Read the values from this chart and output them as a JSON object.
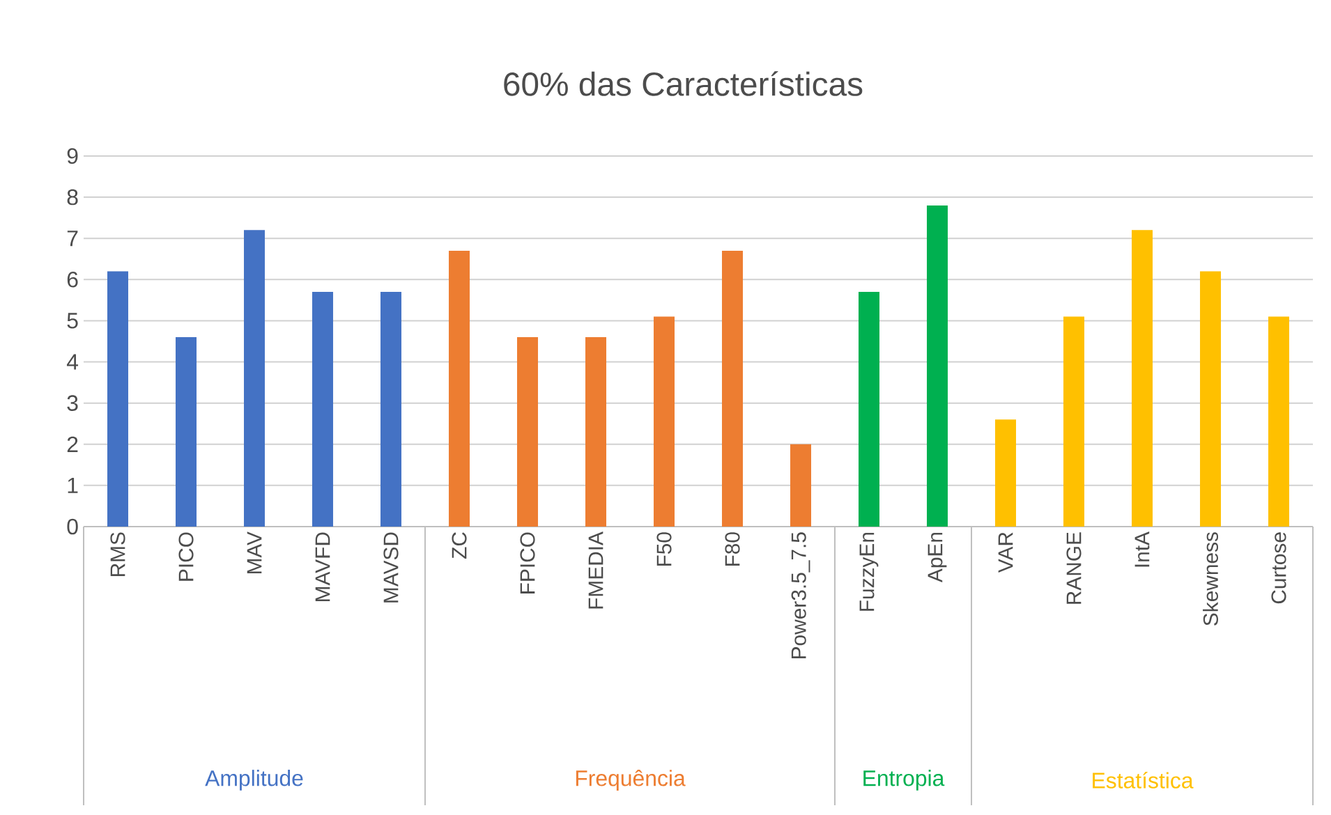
{
  "chart_data": {
    "type": "bar",
    "title": "60% das Características",
    "categories": [
      "RMS",
      "PICO",
      "MAV",
      "MAVFD",
      "MAVSD",
      "ZC",
      "FPICO",
      "FMEDIA",
      "F50",
      "F80",
      "Power3.5_7.5",
      "FuzzyEn",
      "ApEn",
      "VAR",
      "RANGE",
      "IntA",
      "Skewness",
      "Curtose"
    ],
    "series": [
      {
        "name": "Amplitude",
        "color": "#4472c4",
        "values": [
          6.2,
          4.6,
          7.2,
          5.7,
          5.7,
          null,
          null,
          null,
          null,
          null,
          null,
          null,
          null,
          null,
          null,
          null,
          null,
          null
        ]
      },
      {
        "name": "Frequência",
        "color": "#ed7d31",
        "values": [
          null,
          null,
          null,
          null,
          null,
          6.7,
          4.6,
          4.6,
          5.1,
          6.7,
          2.0,
          null,
          null,
          null,
          null,
          null,
          null,
          null
        ]
      },
      {
        "name": "Entropia",
        "color": "#00b050",
        "values": [
          null,
          null,
          null,
          null,
          null,
          null,
          null,
          null,
          null,
          null,
          null,
          5.7,
          7.8,
          null,
          null,
          null,
          null,
          null
        ]
      },
      {
        "name": "Estatística",
        "color": "#ffc000",
        "values": [
          null,
          null,
          null,
          null,
          null,
          null,
          null,
          null,
          null,
          null,
          null,
          null,
          null,
          2.6,
          5.1,
          7.2,
          6.2,
          5.1
        ]
      }
    ],
    "ylim": [
      0,
      9
    ],
    "yticks": [
      0,
      1,
      2,
      3,
      4,
      5,
      6,
      7,
      8,
      9
    ],
    "grid": "y"
  }
}
